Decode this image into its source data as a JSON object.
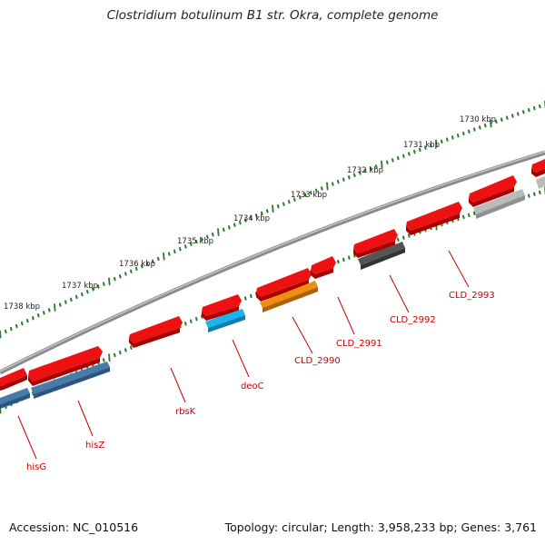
{
  "title": "Clostridium botulinum B1 str. Okra, complete genome",
  "footer": {
    "accession": "Accession: NC_010516",
    "summary": "Topology: circular; Length: 3,958,233 bp; Genes: 3,761"
  },
  "ruler": {
    "labels": [
      {
        "text": "1730 kbp",
        "kbp": 1730
      },
      {
        "text": "1731 kbp",
        "kbp": 1731
      },
      {
        "text": "1732 kbp",
        "kbp": 1732
      },
      {
        "text": "1733 kbp",
        "kbp": 1733
      },
      {
        "text": "1734 kbp",
        "kbp": 1734
      },
      {
        "text": "1735 kbp",
        "kbp": 1735
      },
      {
        "text": "1736 kbp",
        "kbp": 1736
      },
      {
        "text": "1737 kbp",
        "kbp": 1737
      },
      {
        "text": "1738 kbp",
        "kbp": 1738
      }
    ]
  },
  "gene_labels": [
    "hisG",
    "hisZ",
    "rbsK",
    "deoC",
    "CLD_2990",
    "CLD_2991",
    "CLD_2992",
    "CLD_2993"
  ],
  "colors": {
    "gene_red": "#ee1111",
    "hisG_blue": "#4a7aaa",
    "deoC_cyan": "#18b4ee",
    "CLD_2990_orange": "#f08c10",
    "CLD_2992_darkgray": "#555555",
    "CLD_2993_lightgray": "#bbbbbb",
    "backbone": "#777777",
    "ticks": "#2b7a2b",
    "label_red": "#cc0000"
  }
}
